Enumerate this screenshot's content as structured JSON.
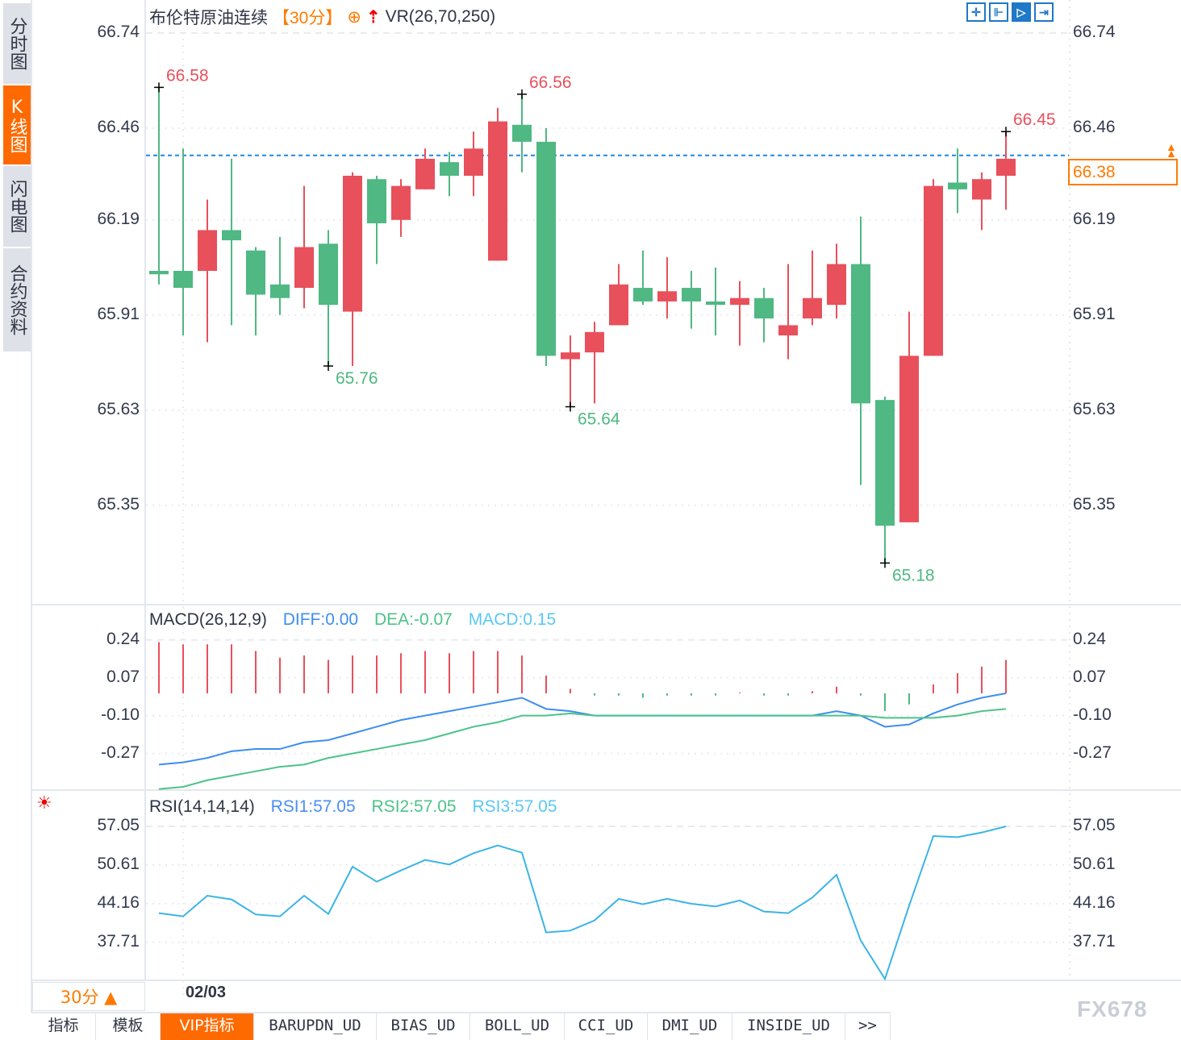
{
  "sidebar": {
    "items": [
      {
        "label": "分时图"
      },
      {
        "label": "K线图",
        "active": true
      },
      {
        "label": "闪电图"
      },
      {
        "label": "合约资料"
      }
    ]
  },
  "header": {
    "instrument": "布伦特原油连续",
    "period": "【30分】",
    "vr_label": "VR(26,70,250)",
    "icons": [
      "crosshair-icon",
      "circle-plus-icon",
      "red-up-arrow-icon"
    ]
  },
  "toolbar": {
    "icons": [
      "crosshair-tool-icon",
      "range-left-icon",
      "range-right-icon",
      "jump-to-end-icon"
    ],
    "active_index": 2
  },
  "colors": {
    "up": "#e8505b",
    "down": "#4fb883",
    "accent": "#ff6a00",
    "diff": "#3d8ef0",
    "dea": "#4cc38a",
    "macd": "#5ac8f2",
    "rsi": "#3bb4e6",
    "last_line": "#1e88e5"
  },
  "main": {
    "y_ticks": [
      "66.74",
      "66.46",
      "66.19",
      "65.91",
      "65.63",
      "65.35"
    ],
    "last_price": "66.38",
    "annotations": [
      {
        "index": 0,
        "kind": "high",
        "label": "66.58"
      },
      {
        "index": 15,
        "kind": "high",
        "label": "66.56"
      },
      {
        "index": 35,
        "kind": "high",
        "label": "66.45"
      },
      {
        "index": 7,
        "kind": "low",
        "label": "65.76"
      },
      {
        "index": 17,
        "kind": "low",
        "label": "65.64"
      },
      {
        "index": 30,
        "kind": "low",
        "label": "65.18"
      }
    ]
  },
  "macd": {
    "title": "MACD(26,12,9)",
    "diff_label": "DIFF:0.00",
    "dea_label": "DEA:-0.07",
    "macd_label": "MACD:0.15",
    "y_ticks": [
      "0.24",
      "0.07",
      "-0.10",
      "-0.27"
    ]
  },
  "rsi": {
    "title": "RSI(14,14,14)",
    "rsi1_label": "RSI1:57.05",
    "rsi2_label": "RSI2:57.05",
    "rsi3_label": "RSI3:57.05",
    "y_ticks": [
      "57.05",
      "50.61",
      "44.16",
      "37.71"
    ]
  },
  "xaxis": {
    "period_button": "30分 ▲",
    "date_label": "02/03"
  },
  "tabs": [
    {
      "label": "指标"
    },
    {
      "label": "模板"
    },
    {
      "label": "VIP指标",
      "active": true
    },
    {
      "label": "BARUPDN_UD"
    },
    {
      "label": "BIAS_UD"
    },
    {
      "label": "BOLL_UD"
    },
    {
      "label": "CCI_UD"
    },
    {
      "label": "DMI_UD"
    },
    {
      "label": "INSIDE_UD"
    },
    {
      "label": ">>"
    }
  ],
  "watermark": "FX678",
  "chart_data": [
    {
      "type": "candlestick",
      "title": "布伦特原油连续 【30分】",
      "ylim": [
        65.06,
        66.74
      ],
      "ohlc": [
        [
          66.04,
          66.58,
          66.0,
          66.03
        ],
        [
          66.04,
          66.4,
          65.85,
          65.99
        ],
        [
          66.04,
          66.25,
          65.83,
          66.16
        ],
        [
          66.16,
          66.37,
          65.88,
          66.13
        ],
        [
          66.1,
          66.11,
          65.85,
          65.97
        ],
        [
          66.0,
          66.14,
          65.91,
          65.96
        ],
        [
          65.99,
          66.29,
          65.93,
          66.11
        ],
        [
          66.12,
          66.16,
          65.76,
          65.94
        ],
        [
          65.92,
          66.33,
          65.76,
          66.32
        ],
        [
          66.31,
          66.32,
          66.06,
          66.18
        ],
        [
          66.19,
          66.31,
          66.14,
          66.29
        ],
        [
          66.28,
          66.4,
          66.28,
          66.37
        ],
        [
          66.36,
          66.39,
          66.26,
          66.32
        ],
        [
          66.32,
          66.45,
          66.26,
          66.4
        ],
        [
          66.07,
          66.52,
          66.07,
          66.48
        ],
        [
          66.47,
          66.56,
          66.33,
          66.42
        ],
        [
          66.42,
          66.46,
          65.76,
          65.79
        ],
        [
          65.78,
          65.85,
          65.64,
          65.8
        ],
        [
          65.8,
          65.89,
          65.65,
          65.86
        ],
        [
          65.88,
          66.06,
          65.88,
          66.0
        ],
        [
          65.99,
          66.1,
          65.94,
          65.95
        ],
        [
          65.95,
          66.08,
          65.9,
          65.98
        ],
        [
          65.99,
          66.04,
          65.87,
          65.95
        ],
        [
          65.95,
          66.05,
          65.85,
          65.94
        ],
        [
          65.94,
          66.01,
          65.82,
          65.96
        ],
        [
          65.96,
          65.99,
          65.83,
          65.9
        ],
        [
          65.85,
          66.06,
          65.78,
          65.88
        ],
        [
          65.9,
          66.1,
          65.88,
          65.96
        ],
        [
          65.94,
          66.12,
          65.9,
          66.06
        ],
        [
          66.06,
          66.2,
          65.41,
          65.65
        ],
        [
          65.66,
          65.67,
          65.18,
          65.29
        ],
        [
          65.3,
          65.92,
          65.3,
          65.79
        ],
        [
          65.79,
          66.31,
          65.79,
          66.29
        ],
        [
          66.3,
          66.4,
          66.21,
          66.28
        ],
        [
          66.25,
          66.33,
          66.16,
          66.31
        ],
        [
          66.32,
          66.45,
          66.22,
          66.37
        ]
      ]
    },
    {
      "type": "bar+line",
      "title": "MACD(26,12,9)",
      "ylim": [
        -0.43,
        0.26
      ],
      "series": [
        {
          "name": "MACD",
          "values": [
            0.23,
            0.22,
            0.22,
            0.22,
            0.19,
            0.16,
            0.17,
            0.15,
            0.17,
            0.17,
            0.18,
            0.19,
            0.18,
            0.19,
            0.19,
            0.17,
            0.08,
            0.02,
            -0.01,
            -0.01,
            -0.02,
            -0.01,
            -0.01,
            -0.01,
            0.0,
            -0.01,
            -0.01,
            0.01,
            0.03,
            -0.01,
            -0.08,
            -0.05,
            0.04,
            0.09,
            0.12,
            0.15
          ]
        },
        {
          "name": "DIFF",
          "values": [
            -0.32,
            -0.31,
            -0.29,
            -0.26,
            -0.25,
            -0.25,
            -0.22,
            -0.21,
            -0.18,
            -0.15,
            -0.12,
            -0.1,
            -0.08,
            -0.06,
            -0.04,
            -0.02,
            -0.07,
            -0.08,
            -0.1,
            -0.1,
            -0.1,
            -0.1,
            -0.1,
            -0.1,
            -0.1,
            -0.1,
            -0.1,
            -0.1,
            -0.08,
            -0.1,
            -0.15,
            -0.14,
            -0.09,
            -0.05,
            -0.02,
            0.0
          ]
        },
        {
          "name": "DEA",
          "values": [
            -0.43,
            -0.42,
            -0.39,
            -0.37,
            -0.35,
            -0.33,
            -0.32,
            -0.29,
            -0.27,
            -0.25,
            -0.23,
            -0.21,
            -0.18,
            -0.15,
            -0.13,
            -0.1,
            -0.1,
            -0.09,
            -0.1,
            -0.1,
            -0.1,
            -0.1,
            -0.1,
            -0.1,
            -0.1,
            -0.1,
            -0.1,
            -0.1,
            -0.1,
            -0.1,
            -0.11,
            -0.11,
            -0.11,
            -0.1,
            -0.08,
            -0.07
          ]
        }
      ]
    },
    {
      "type": "line",
      "title": "RSI(14,14,14)",
      "ylim": [
        31.4,
        59
      ],
      "series": [
        {
          "name": "RSI1",
          "values": [
            42.58,
            42.05,
            45.49,
            44.87,
            42.36,
            42.05,
            45.49,
            42.45,
            50.33,
            47.82,
            49.7,
            51.45,
            50.69,
            52.57,
            53.87,
            52.66,
            39.36,
            39.67,
            41.37,
            44.96,
            44.06,
            44.96,
            44.15,
            43.7,
            44.69,
            42.85,
            42.58,
            45.18,
            48.99,
            38.01,
            31.61,
            43.84,
            55.44,
            55.26,
            56.02,
            57.05
          ]
        }
      ]
    }
  ]
}
